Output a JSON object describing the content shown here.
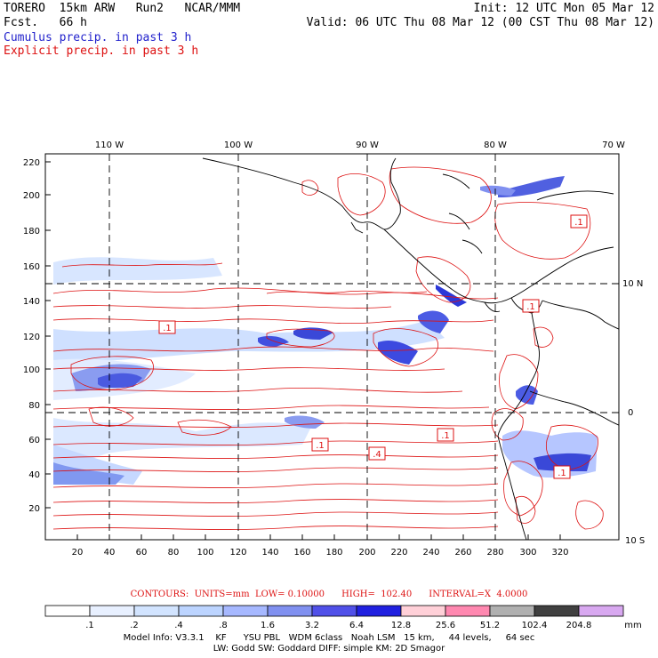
{
  "header": {
    "line1_left": "TORERO  15km ARW   Run2   NCAR/MMM",
    "line1_right": "Init: 12 UTC Mon 05 Mar 12",
    "line2_left": "Fcst.   66 h",
    "line2_right": "Valid: 06 UTC Thu 08 Mar 12 (00 CST Thu 08 Mar 12)",
    "cumulus_label": "Cumulus precip. in past 3 h",
    "explicit_label": "Explicit precip. in past 3 h"
  },
  "map": {
    "lon_labels": [
      "110 W",
      "100 W",
      "90 W",
      "80 W",
      "70 W"
    ],
    "lat_labels": [
      "10 N",
      "0",
      "10 S"
    ],
    "x_ticks": [
      "20",
      "40",
      "60",
      "80",
      "100",
      "120",
      "140",
      "160",
      "180",
      "200",
      "220",
      "240",
      "260",
      "280",
      "300",
      "320"
    ],
    "y_ticks": [
      "220",
      "200",
      "180",
      "160",
      "140",
      "120",
      "100",
      "80",
      "60",
      "40",
      "20"
    ],
    "contour_box_labels": [
      ".1",
      ".1",
      ".1",
      ".4",
      ".1",
      ".1",
      ".1"
    ],
    "colors": {
      "cumulus": "#2222cc",
      "explicit": "#dd1111",
      "coast": "#000000"
    }
  },
  "legend": {
    "contours_text": "CONTOURS:  UNITS=mm  LOW= 0.10000      HIGH=  102.40      INTERVAL=X  4.0000",
    "bin_labels": [
      ".1",
      ".2",
      ".4",
      ".8",
      "1.6",
      "3.2",
      "6.4",
      "12.8",
      "25.6",
      "51.2",
      "102.4",
      "204.8"
    ],
    "colors": [
      "#ffffff",
      "#e8f0ff",
      "#d2e4ff",
      "#bcd4ff",
      "#a6b8ff",
      "#8090f0",
      "#5050e8",
      "#2020e0",
      "#ffd0d8",
      "#ff88b0",
      "#b0b0b0",
      "#404040",
      "#d8a8f0"
    ],
    "unit": "mm"
  },
  "footer": {
    "model_info": "Model Info: V3.3.1    KF      YSU PBL   WDM 6class   Noah LSM   15 km,     44 levels,     64 sec",
    "model_info2": "LW: Godd SW: Goddard DIFF: simple KM: 2D Smagor"
  }
}
